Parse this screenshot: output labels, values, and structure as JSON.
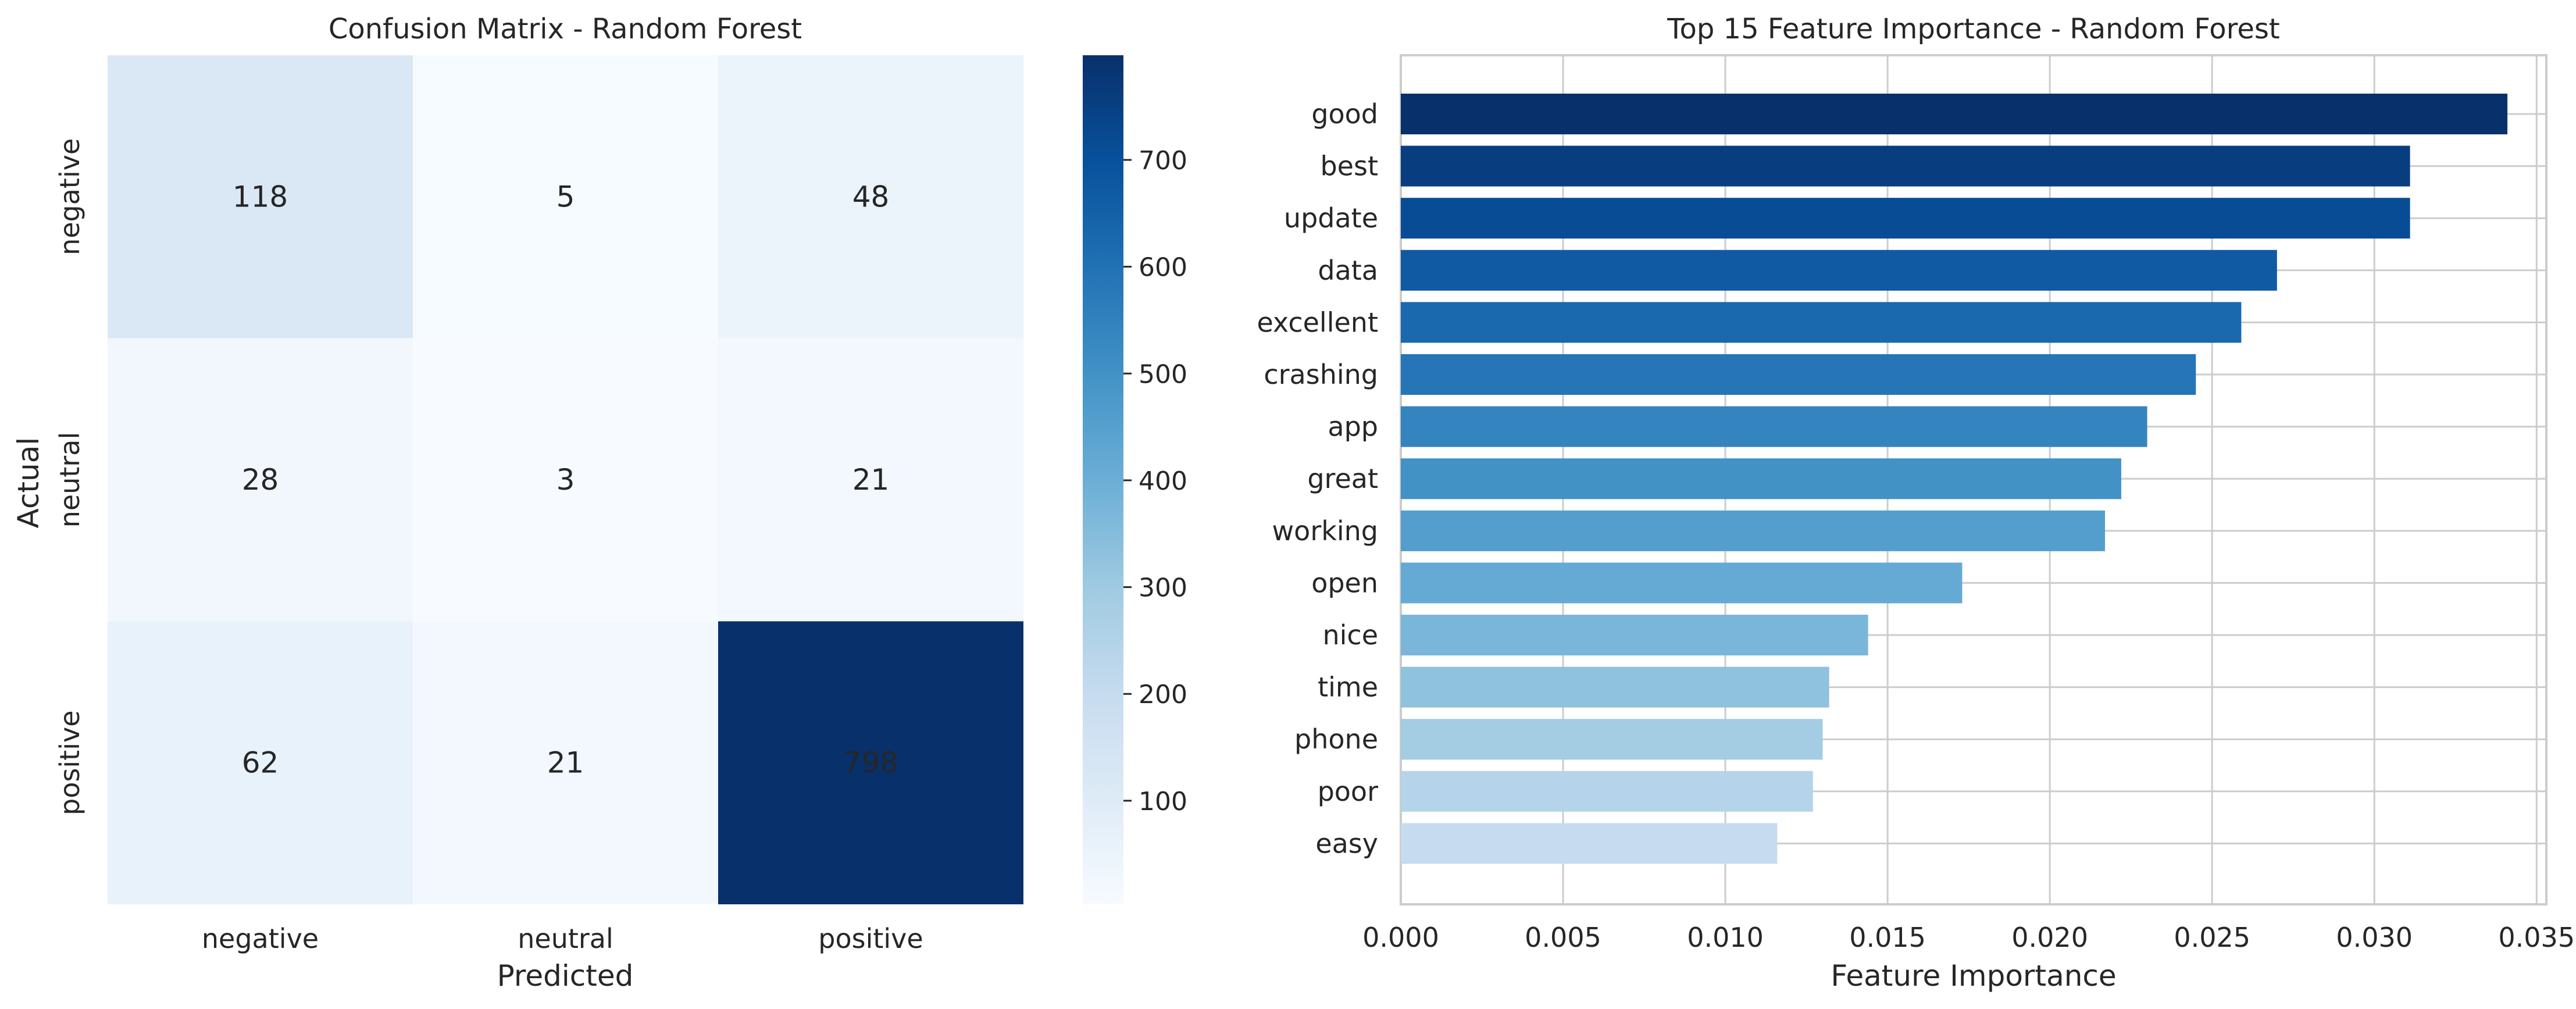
{
  "chart_data": [
    {
      "type": "heatmap",
      "title": "Confusion Matrix - Random Forest",
      "xlabel": "Predicted",
      "ylabel": "Actual",
      "x_categories": [
        "negative",
        "neutral",
        "positive"
      ],
      "y_categories": [
        "negative",
        "neutral",
        "positive"
      ],
      "values": [
        [
          118,
          5,
          48
        ],
        [
          28,
          3,
          21
        ],
        [
          62,
          21,
          798
        ]
      ],
      "colormap": "Blues",
      "colorbar": {
        "min": 3,
        "max": 798,
        "ticks": [
          100,
          200,
          300,
          400,
          500,
          600,
          700
        ]
      }
    },
    {
      "type": "bar",
      "orientation": "horizontal",
      "title": "Top 15 Feature Importance - Random Forest",
      "xlabel": "Feature Importance",
      "ylabel": "",
      "categories": [
        "good",
        "best",
        "update",
        "data",
        "excellent",
        "crashing",
        "app",
        "great",
        "working",
        "open",
        "nice",
        "time",
        "phone",
        "poor",
        "easy"
      ],
      "values": [
        0.0341,
        0.0311,
        0.0311,
        0.027,
        0.0259,
        0.0245,
        0.023,
        0.0222,
        0.0217,
        0.0173,
        0.0144,
        0.0132,
        0.013,
        0.0127,
        0.0116
      ],
      "xlim": [
        0,
        0.0353
      ],
      "xticks": [
        "0.000",
        "0.005",
        "0.010",
        "0.015",
        "0.020",
        "0.025",
        "0.030",
        "0.035"
      ],
      "xtick_values": [
        0,
        0.005,
        0.01,
        0.015,
        0.02,
        0.025,
        0.03,
        0.035
      ],
      "grid": true,
      "colormap": "Blues (descending with importance)"
    }
  ]
}
